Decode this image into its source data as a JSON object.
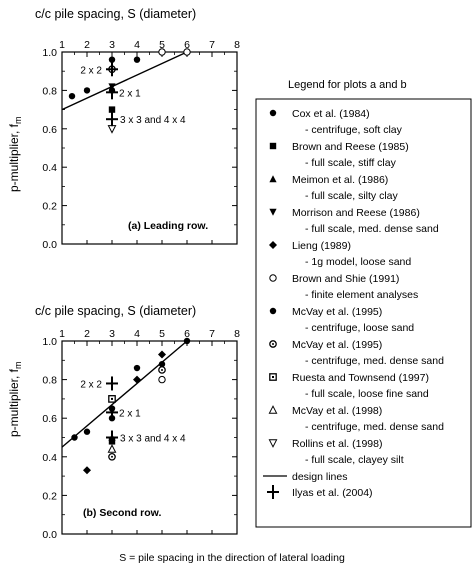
{
  "footnote": "S = pile spacing in the direction of lateral loading",
  "legend": {
    "title": "Legend for plots a and b",
    "entries": [
      {
        "marker": "filled-circle",
        "name": "Cox et al. (1984)",
        "sub": "- centrifuge, soft clay"
      },
      {
        "marker": "filled-square",
        "name": "Brown and Reese (1985)",
        "sub": "- full scale, stiff clay"
      },
      {
        "marker": "filled-triangle-up",
        "name": "Meimon et al. (1986)",
        "sub": "- full scale, silty clay"
      },
      {
        "marker": "filled-triangle-down",
        "name": "Morrison and Reese (1986)",
        "sub": "- full scale, med. dense sand"
      },
      {
        "marker": "filled-diamond",
        "name": "Lieng (1989)",
        "sub": "- 1g model, loose sand"
      },
      {
        "marker": "open-circle",
        "name": "Brown and Shie (1991)",
        "sub": "- finite element analyses"
      },
      {
        "marker": "filled-circle",
        "name": "McVay et al. (1995)",
        "sub": "- centrifuge, loose sand"
      },
      {
        "marker": "open-circle-dot",
        "name": "McVay et al. (1995)",
        "sub": "- centrifuge, med. dense sand"
      },
      {
        "marker": "open-square-dot",
        "name": "Ruesta and Townsend (1997)",
        "sub": "- full scale, loose fine sand"
      },
      {
        "marker": "open-triangle-up",
        "name": "McVay et al. (1998)",
        "sub": "- centrifuge, med. dense sand"
      },
      {
        "marker": "open-triangle-down",
        "name": "Rollins et al. (1998)",
        "sub": "- full scale, clayey silt"
      },
      {
        "marker": "line",
        "name": "design lines",
        "sub": ""
      },
      {
        "marker": "plus",
        "name": "Ilyas et al. (2004)",
        "sub": ""
      }
    ]
  },
  "chart_data": [
    {
      "type": "scatter",
      "title": "c/c pile spacing, S (diameter)",
      "panel_label": "(a) Leading row.",
      "xlabel": "c/c pile spacing, S (diameter)",
      "ylabel_main": "p-multiplier, f",
      "ylabel_sub": "m",
      "xlim": [
        1,
        8
      ],
      "ylim": [
        0.0,
        1.0
      ],
      "xticks": [
        1,
        2,
        3,
        4,
        5,
        6,
        7,
        8
      ],
      "yticks": [
        "0.0",
        "0.2",
        "0.4",
        "0.6",
        "0.8",
        "1.0"
      ],
      "series": [
        {
          "marker": "filled-circle",
          "points": [
            [
              1.4,
              0.77
            ],
            [
              2,
              0.8
            ],
            [
              3,
              0.8
            ],
            [
              3,
              0.96
            ],
            [
              4,
              0.96
            ]
          ]
        },
        {
          "marker": "filled-square",
          "points": [
            [
              3,
              0.7
            ]
          ]
        },
        {
          "marker": "filled-triangle-down",
          "points": [
            [
              3,
              0.82
            ]
          ]
        },
        {
          "marker": "open-circle",
          "points": [
            [
              5,
              1.0
            ],
            [
              6,
              1.0
            ]
          ]
        },
        {
          "marker": "open-circle-dot",
          "points": [
            [
              3,
              0.91
            ]
          ]
        },
        {
          "marker": "open-triangle-down",
          "points": [
            [
              3,
              0.6
            ]
          ]
        }
      ],
      "design_line": [
        [
          1,
          0.7
        ],
        [
          6,
          1.0
        ]
      ],
      "ilyas": [
        {
          "label": "2 x 2",
          "x": 3,
          "y": 0.91
        },
        {
          "label": "2 x 1",
          "x": 3,
          "y": 0.79
        },
        {
          "label": "3 x 3 and 4 x 4",
          "x": 3,
          "y": 0.65
        }
      ]
    },
    {
      "type": "scatter",
      "title": "c/c pile spacing, S (diameter)",
      "panel_label": "(b) Second row.",
      "xlabel": "c/c pile spacing, S (diameter)",
      "ylabel_main": "p-multiplier, f",
      "ylabel_sub": "m",
      "xlim": [
        1,
        8
      ],
      "ylim": [
        0.0,
        1.0
      ],
      "xticks": [
        1,
        2,
        3,
        4,
        5,
        6,
        7,
        8
      ],
      "yticks": [
        "0.0",
        "0.2",
        "0.4",
        "0.6",
        "0.8",
        "1.0"
      ],
      "series": [
        {
          "marker": "filled-circle",
          "points": [
            [
              1.5,
              0.5
            ],
            [
              2,
              0.53
            ],
            [
              3,
              0.6
            ],
            [
              3,
              0.65
            ],
            [
              4,
              0.86
            ],
            [
              5,
              0.88
            ],
            [
              6,
              1.0
            ]
          ]
        },
        {
          "marker": "filled-square",
          "points": [
            [
              3,
              0.48
            ]
          ]
        },
        {
          "marker": "filled-triangle-up",
          "points": [
            [
              3,
              0.5
            ]
          ]
        },
        {
          "marker": "filled-diamond",
          "points": [
            [
              2,
              0.33
            ],
            [
              4,
              0.8
            ],
            [
              5,
              0.93
            ]
          ]
        },
        {
          "marker": "open-circle",
          "points": [
            [
              5,
              0.8
            ]
          ]
        },
        {
          "marker": "open-circle-dot",
          "points": [
            [
              3,
              0.4
            ],
            [
              5,
              0.85
            ]
          ]
        },
        {
          "marker": "open-square-dot",
          "points": [
            [
              3,
              0.7
            ]
          ]
        },
        {
          "marker": "open-triangle-up",
          "points": [
            [
              3,
              0.44
            ]
          ]
        }
      ],
      "design_line": [
        [
          1,
          0.45
        ],
        [
          6,
          1.0
        ]
      ],
      "ilyas": [
        {
          "label": "2 x 2",
          "x": 3,
          "y": 0.78
        },
        {
          "label": "2 x 1",
          "x": 3,
          "y": 0.63
        },
        {
          "label": "3 x 3 and 4 x 4",
          "x": 3,
          "y": 0.5
        }
      ]
    }
  ]
}
